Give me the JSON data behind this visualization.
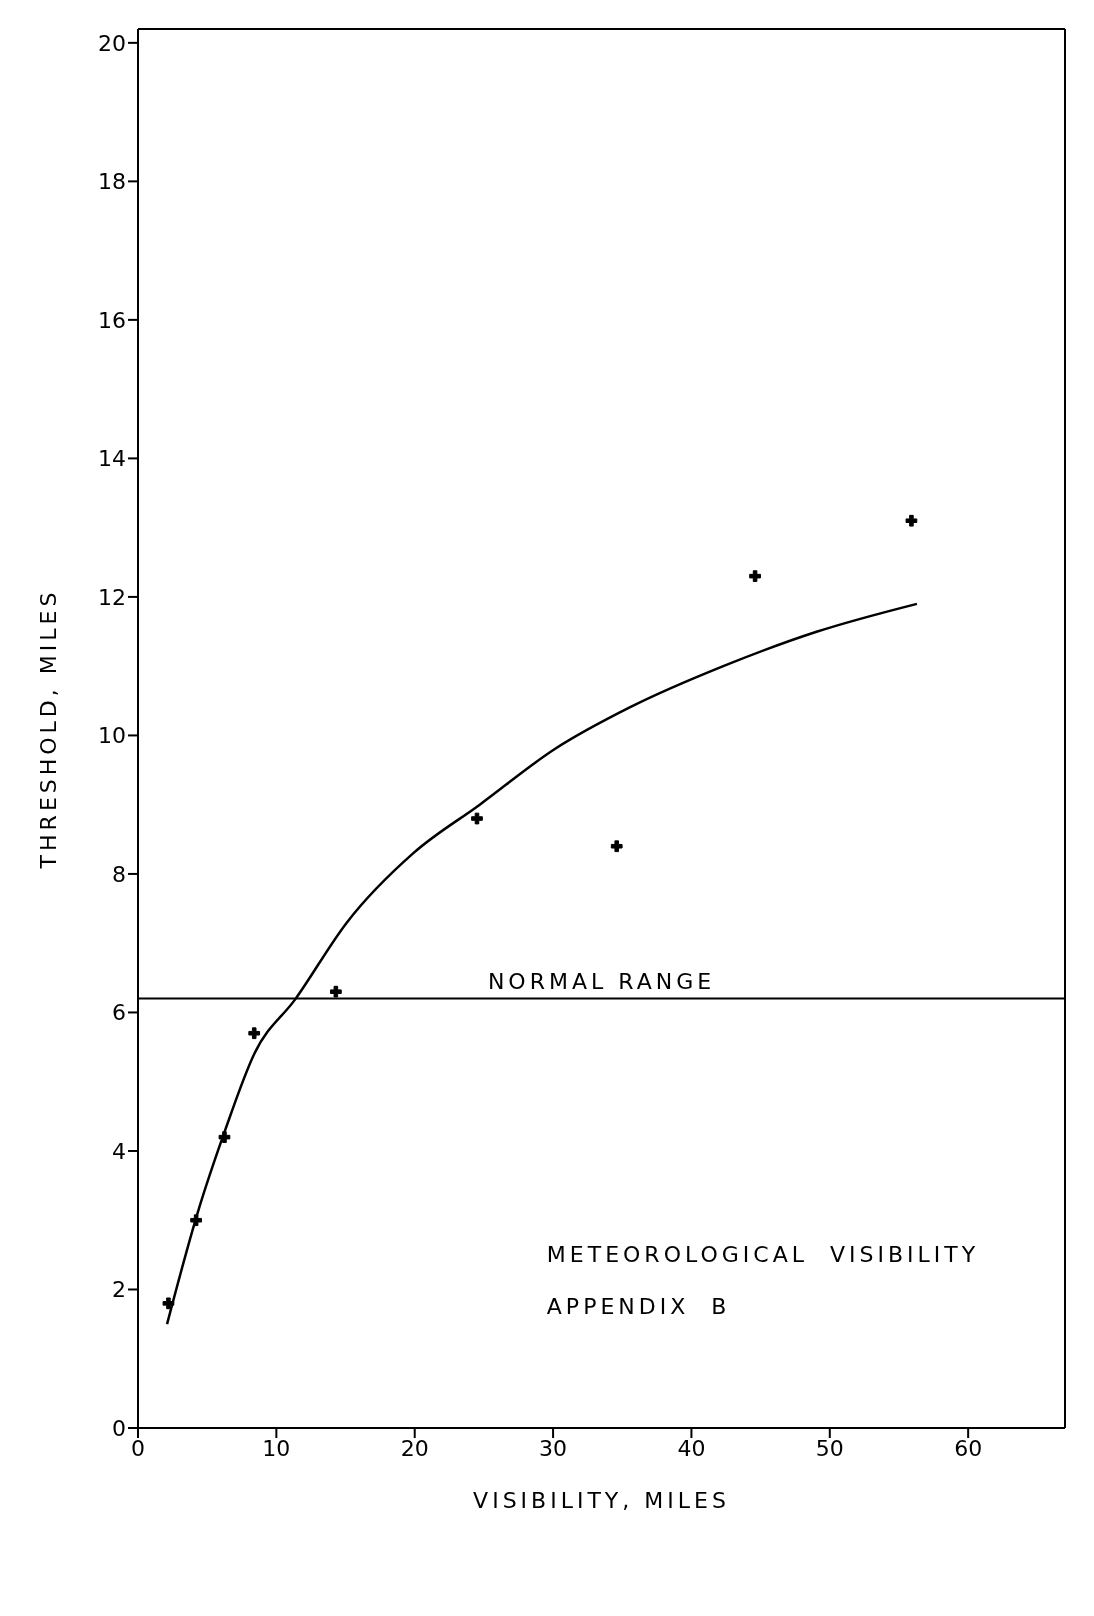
{
  "chart_data": {
    "type": "scatter",
    "xlabel": "VISIBILITY,  MILES",
    "ylabel": "THRESHOLD,  MILES",
    "xlim": [
      0,
      67
    ],
    "ylim": [
      0,
      20.2
    ],
    "xticks": [
      0,
      10,
      20,
      30,
      40,
      50,
      60
    ],
    "yticks": [
      0,
      2,
      4,
      6,
      8,
      10,
      12,
      14,
      16,
      18,
      20
    ],
    "grid": false,
    "marker": "cross",
    "series": [
      {
        "color": "#000000",
        "x": [
          2.2,
          4.2,
          6.25,
          8.4,
          14.3,
          24.5,
          34.6,
          44.6,
          55.9
        ],
        "values": [
          1.8,
          3.0,
          4.2,
          5.7,
          6.3,
          8.8,
          8.4,
          12.3,
          13.1
        ]
      },
      {
        "type": "line",
        "color": "#000000",
        "marker": "none",
        "line_style": "solid",
        "x": [
          2.1,
          4.3,
          6.3,
          8.4,
          11.4,
          15.1,
          19.9,
          24.7,
          30.1,
          35.5,
          42.3,
          49.1,
          56.3
        ],
        "values": [
          1.5,
          3.1,
          4.3,
          5.4,
          6.2,
          7.3,
          8.3,
          9.0,
          9.8,
          10.4,
          11.0,
          11.5,
          11.9
        ]
      }
    ],
    "ref_lines": [
      {
        "axis": "y",
        "value": 6.2,
        "label": "NORMAL RANGE",
        "color": "#000000",
        "line_style": "solid"
      }
    ],
    "annotations": [
      "METEOROLOGICAL  VISIBILITY",
      "APPENDIX  B"
    ]
  }
}
